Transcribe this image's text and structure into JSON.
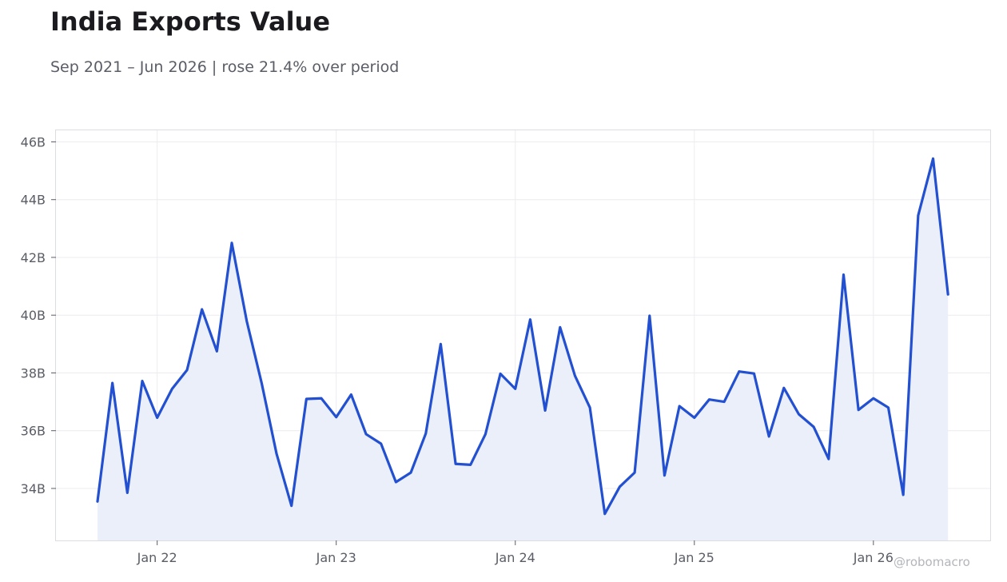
{
  "title": "India Exports Value",
  "subtitle": "Sep 2021 – Jun 2026 | rose 21.4% over period",
  "watermark": "@robomacro",
  "colors": {
    "line": "#2250d0",
    "fill": "#eaeffa",
    "grid": "#ececf0",
    "axis_text": "#5a5d66"
  },
  "chart_data": {
    "type": "area",
    "title": "India Exports Value",
    "subtitle": "Sep 2021 – Jun 2026 | rose 21.4% over period",
    "xlabel": "",
    "ylabel": "",
    "x_start": "2021-09",
    "x_end": "2026-06",
    "x_ticks": [
      {
        "date": "2022-01",
        "label": "Jan 22"
      },
      {
        "date": "2023-01",
        "label": "Jan 23"
      },
      {
        "date": "2024-01",
        "label": "Jan 24"
      },
      {
        "date": "2025-01",
        "label": "Jan 25"
      },
      {
        "date": "2026-01",
        "label": "Jan 26"
      }
    ],
    "y_ticks": [
      {
        "value": 34,
        "label": "34B"
      },
      {
        "value": 36,
        "label": "36B"
      },
      {
        "value": 38,
        "label": "38B"
      },
      {
        "value": 40,
        "label": "40B"
      },
      {
        "value": 42,
        "label": "42B"
      },
      {
        "value": 44,
        "label": "44B"
      },
      {
        "value": 46,
        "label": "46B"
      }
    ],
    "ylim": [
      32.2,
      46.4
    ],
    "grid": true,
    "units": "B",
    "series": [
      {
        "dates": [
          "2021-09",
          "2021-10",
          "2021-11",
          "2021-12",
          "2022-01",
          "2022-02",
          "2022-03",
          "2022-04",
          "2022-05",
          "2022-06",
          "2022-07",
          "2022-08",
          "2022-09",
          "2022-10",
          "2022-11",
          "2022-12",
          "2023-01",
          "2023-02",
          "2023-03",
          "2023-04",
          "2023-05",
          "2023-06",
          "2023-07",
          "2023-08",
          "2023-09",
          "2023-10",
          "2023-11",
          "2023-12",
          "2024-01",
          "2024-02",
          "2024-03",
          "2024-04",
          "2024-05",
          "2024-06",
          "2024-07",
          "2024-08",
          "2024-09",
          "2024-10",
          "2024-11",
          "2024-12",
          "2025-01",
          "2025-02",
          "2025-03",
          "2025-04",
          "2025-05",
          "2025-06",
          "2025-07",
          "2025-08",
          "2025-09",
          "2025-10",
          "2025-11",
          "2025-12",
          "2026-01",
          "2026-02",
          "2026-03",
          "2026-04",
          "2026-05",
          "2026-06"
        ],
        "values": [
          33.55,
          37.65,
          33.85,
          37.72,
          36.45,
          37.45,
          38.1,
          40.2,
          38.75,
          42.5,
          39.8,
          37.65,
          35.2,
          33.4,
          37.1,
          37.12,
          36.47,
          37.25,
          35.88,
          35.55,
          34.22,
          34.55,
          35.9,
          39.0,
          34.85,
          34.82,
          35.88,
          37.97,
          37.45,
          39.85,
          36.7,
          39.58,
          37.9,
          36.8,
          33.12,
          34.06,
          34.55,
          39.98,
          34.45,
          36.85,
          36.45,
          37.08,
          37.0,
          38.05,
          37.98,
          35.8,
          37.48,
          36.57,
          36.13,
          35.02,
          41.4,
          36.72,
          37.12,
          36.8,
          33.78,
          43.45,
          45.42,
          40.72
        ]
      }
    ]
  }
}
